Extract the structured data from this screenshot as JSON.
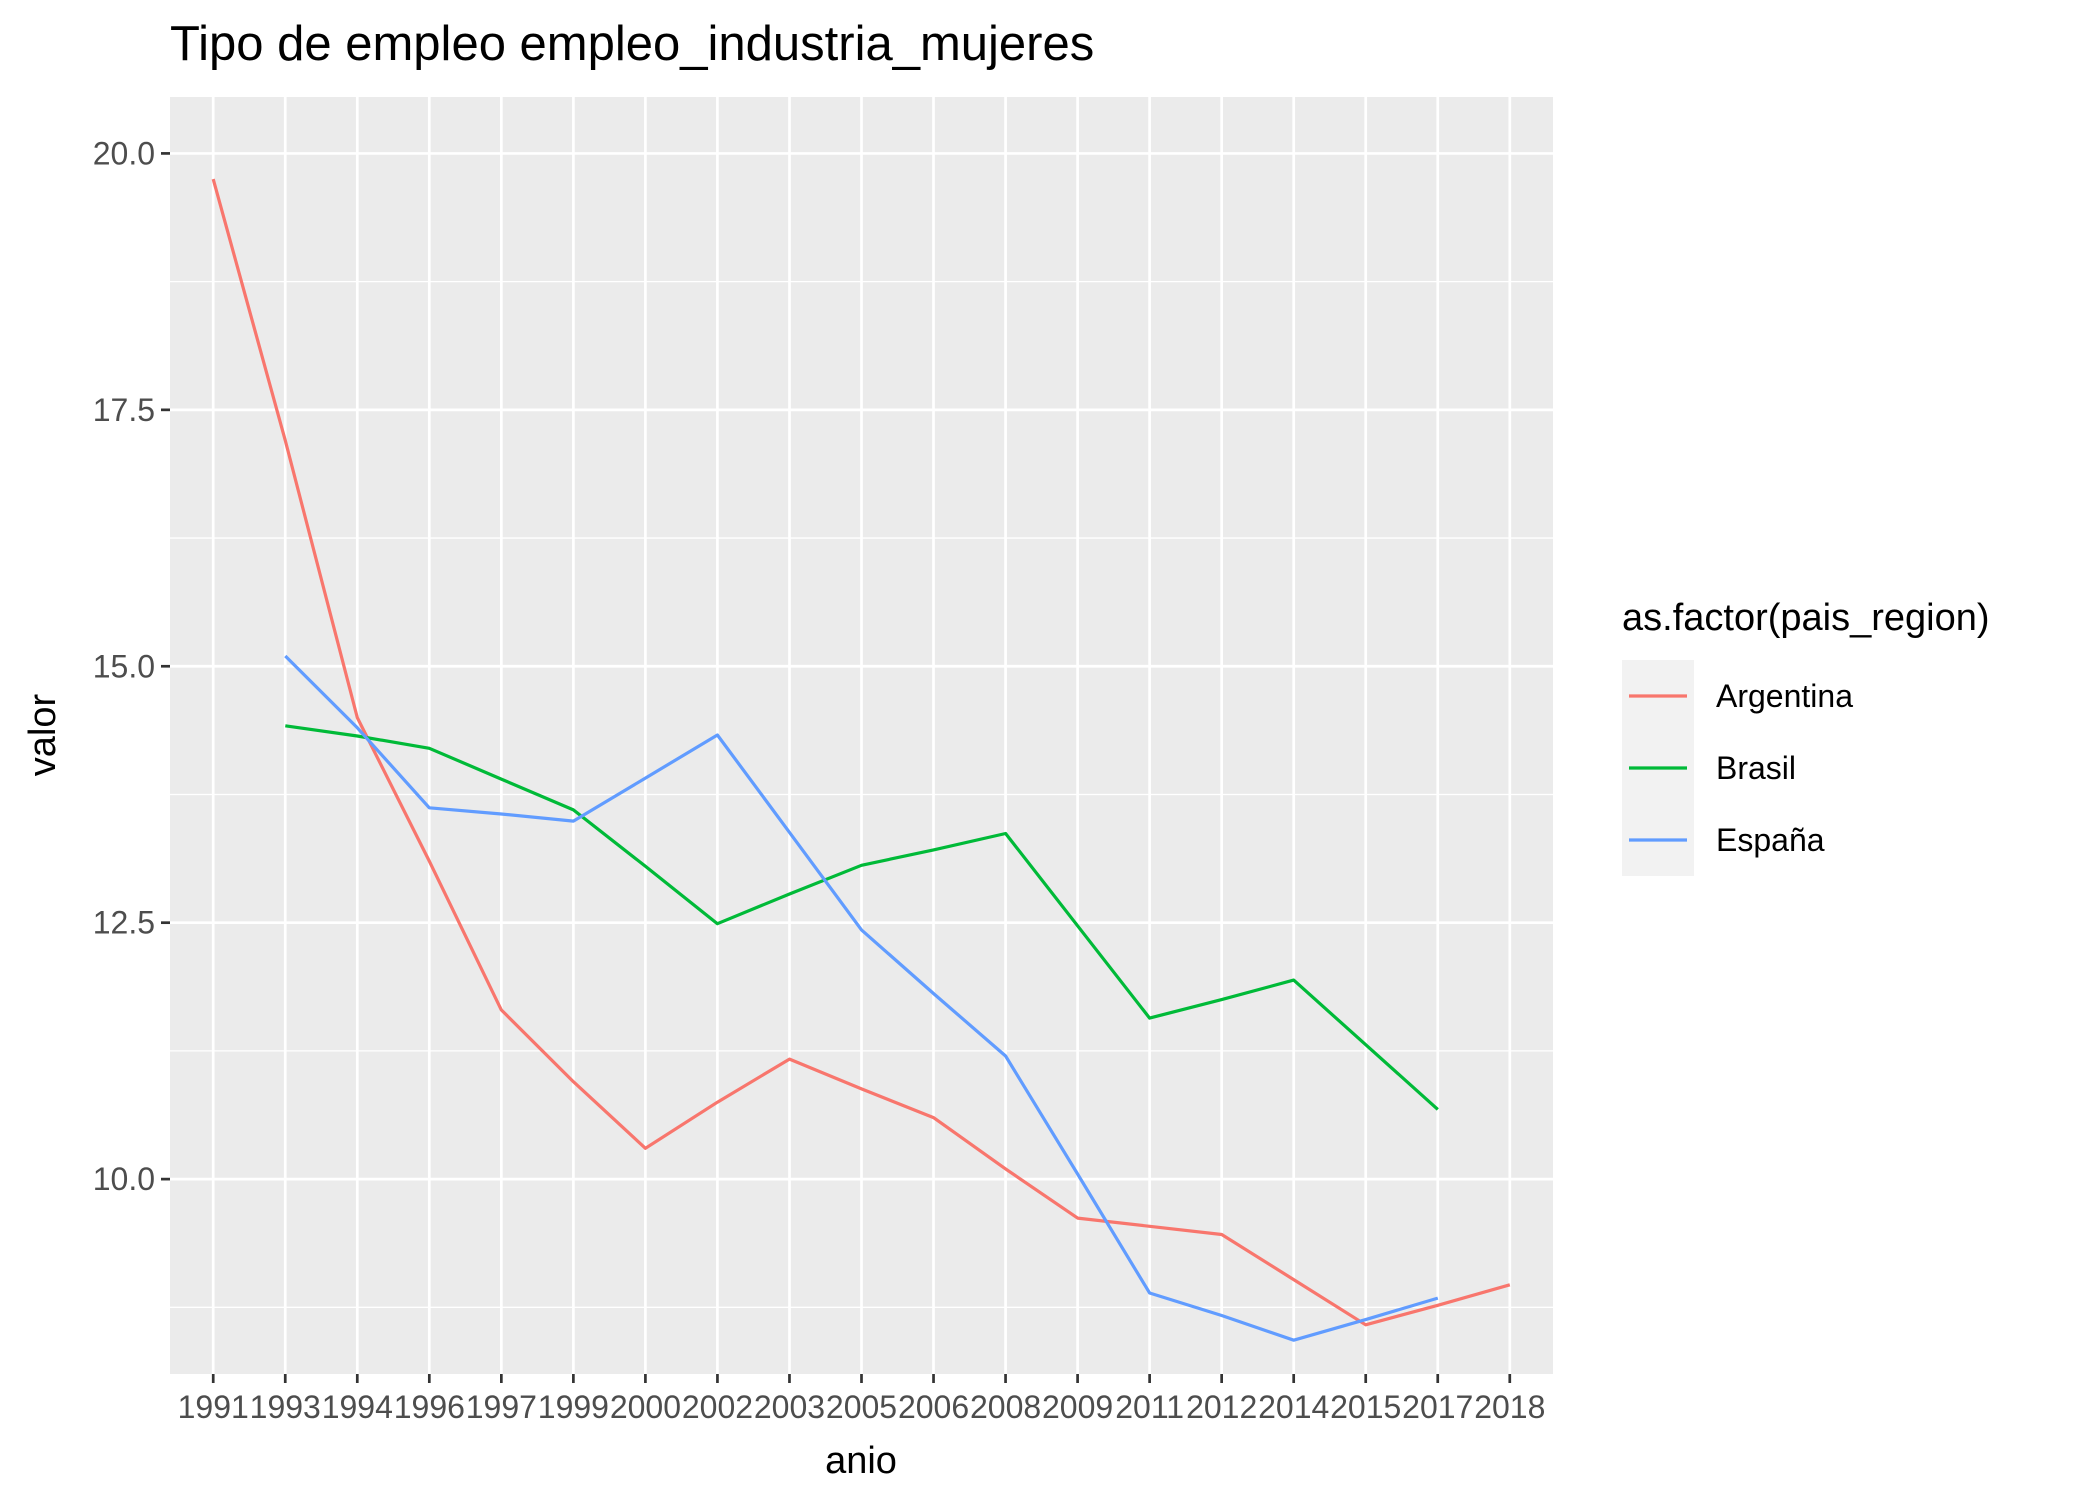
{
  "chart_data": {
    "type": "line",
    "title": "Tipo de empleo empleo_industria_mujeres",
    "xlabel": "anio",
    "ylabel": "valor",
    "categories": [
      "1991",
      "1993",
      "1994",
      "1996",
      "1997",
      "1999",
      "2000",
      "2002",
      "2003",
      "2005",
      "2006",
      "2008",
      "2009",
      "2011",
      "2012",
      "2014",
      "2015",
      "2017",
      "2018"
    ],
    "ylim": [
      8.1,
      20.55
    ],
    "yticks": [
      10.0,
      12.5,
      15.0,
      17.5,
      20.0
    ],
    "ytick_labels": [
      "10.0",
      "12.5",
      "15.0",
      "17.5",
      "20.0"
    ],
    "grid": true,
    "legend": {
      "title": "as.factor(pais_region)",
      "position": "right"
    },
    "series": [
      {
        "name": "Argentina",
        "color": "#F8766D",
        "values": [
          19.75,
          17.2,
          14.5,
          13.1,
          11.65,
          10.95,
          10.3,
          10.75,
          11.17,
          10.88,
          10.6,
          10.1,
          9.62,
          9.54,
          9.46,
          9.02,
          8.58,
          8.77,
          8.97
        ]
      },
      {
        "name": "Brasil",
        "color": "#00BA38",
        "values": [
          null,
          14.42,
          14.32,
          14.2,
          13.9,
          13.6,
          13.05,
          12.49,
          12.78,
          13.06,
          13.21,
          13.37,
          12.47,
          11.57,
          11.75,
          11.94,
          11.31,
          10.68,
          null
        ]
      },
      {
        "name": "España",
        "color": "#619CFF",
        "values": [
          null,
          15.1,
          14.4,
          13.62,
          13.56,
          13.49,
          13.91,
          14.33,
          13.38,
          12.43,
          11.81,
          11.2,
          10.05,
          8.89,
          8.67,
          8.43,
          8.63,
          8.84,
          null
        ]
      }
    ]
  }
}
